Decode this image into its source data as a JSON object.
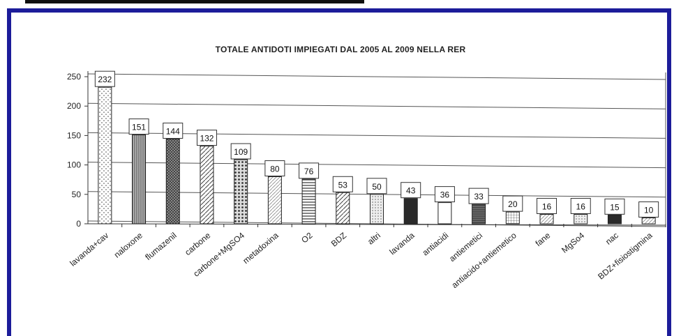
{
  "chart_data": {
    "type": "bar",
    "title": "TOTALE ANTIDOTI IMPIEGATI DAL 2005 AL 2009 NELLA RER",
    "xlabel": "",
    "ylabel": "",
    "ylim": [
      0,
      250
    ],
    "yticks": [
      "0",
      "50",
      "100",
      "150",
      "200",
      "250"
    ],
    "grid": true,
    "categories": [
      "lavanda+cav",
      "naloxone",
      "flumazenil",
      "carbone",
      "carbone+MgSO4",
      "metadoxina",
      "O2",
      "BDZ",
      "altri",
      "lavanda",
      "antiacidi",
      "antiemetici",
      "antiacido+antiemetico",
      "fane",
      "MgSo4",
      "nac",
      "BDZ+fisiostigmina"
    ],
    "values": [
      232,
      151,
      144,
      132,
      109,
      80,
      76,
      53,
      50,
      43,
      36,
      33,
      20,
      16,
      16,
      15,
      10
    ],
    "data_labels": [
      "232",
      "151",
      "144",
      "132",
      "109",
      "80",
      "76",
      "53",
      "50",
      "43",
      "36",
      "33",
      "20",
      "16",
      "16",
      "15",
      "10"
    ],
    "patterns": [
      "dots",
      "vertical-lines",
      "cross-hatch",
      "diagonal-hatch",
      "dense-dots",
      "diagonal-light",
      "horizontal-lines",
      "diagonal-hatch",
      "light-dots",
      "solid-dark",
      "none",
      "horizontal-dense",
      "grid",
      "diagonal-light",
      "light-dots",
      "solid-dark",
      "diagonal-light"
    ]
  },
  "colors": {
    "frame": "#1c1c9a",
    "ink": "#222222",
    "grid": "#555555"
  }
}
